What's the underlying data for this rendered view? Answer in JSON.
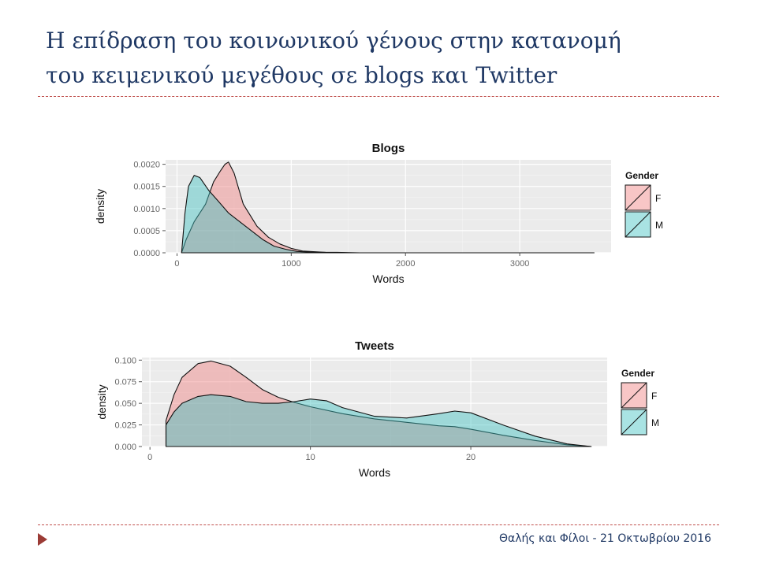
{
  "slide": {
    "title_line1": "Η επίδραση του κοινωνικού γένους στην κατανομή",
    "title_line2": "του κειμενικού μεγέθους σε blogs και Twitter",
    "footer": "Θαλής και Φίλοι - 21 Οκτωβρίου 2016"
  },
  "colors": {
    "F": "#f08080",
    "M": "#40c0c0",
    "panel": "#ebebeb",
    "grid": "#ffffff",
    "title": "#1f3864",
    "rule": "#c0504d"
  },
  "chart_data": [
    {
      "type": "area",
      "title": "Blogs",
      "xlabel": "Words",
      "ylabel": "density",
      "xlim": [
        -100,
        3800
      ],
      "ylim": [
        0,
        0.0021
      ],
      "xticks": [
        0,
        1000,
        2000,
        3000
      ],
      "xtick_labels": [
        "0",
        "1000",
        "2000",
        "3000"
      ],
      "yticks": [
        0,
        0.0005,
        0.001,
        0.0015,
        0.002
      ],
      "ytick_labels": [
        "0.0000",
        "0.0005",
        "0.0010",
        "0.0015",
        "0.0020"
      ],
      "grid": true,
      "legend": {
        "title": "Gender",
        "position": "right",
        "items": [
          "F",
          "M"
        ]
      },
      "series": [
        {
          "name": "F",
          "x": [
            40,
            80,
            150,
            250,
            320,
            380,
            420,
            450,
            500,
            580,
            700,
            800,
            900,
            1000,
            1100,
            1300,
            1500,
            1700,
            2000,
            2500,
            3000,
            3650
          ],
          "y": [
            0.0,
            0.0003,
            0.0007,
            0.0011,
            0.0016,
            0.00185,
            0.002,
            0.00205,
            0.0018,
            0.0011,
            0.0006,
            0.00035,
            0.0002,
            0.0001,
            4e-05,
            1e-05,
            0.0,
            0.0,
            0.0,
            0.0,
            0.0,
            0.0
          ]
        },
        {
          "name": "M",
          "x": [
            40,
            70,
            100,
            150,
            200,
            280,
            350,
            450,
            550,
            650,
            750,
            850,
            950,
            1050,
            1200,
            1400,
            1600,
            2000,
            2500,
            3000,
            3650
          ],
          "y": [
            0.0,
            0.0009,
            0.0015,
            0.00175,
            0.0017,
            0.0014,
            0.0012,
            0.0009,
            0.0007,
            0.0005,
            0.0003,
            0.00015,
            8e-05,
            3e-05,
            1e-05,
            1e-05,
            0.0,
            0.0,
            0.0,
            0.0,
            0.0
          ]
        }
      ]
    },
    {
      "type": "area",
      "title": "Tweets",
      "xlabel": "Words",
      "ylabel": "density",
      "xlim": [
        -0.5,
        28.5
      ],
      "ylim": [
        0,
        0.103
      ],
      "xticks": [
        0,
        10,
        20
      ],
      "xtick_labels": [
        "0",
        "10",
        "20"
      ],
      "yticks": [
        0,
        0.025,
        0.05,
        0.075,
        0.1
      ],
      "ytick_labels": [
        "0.000",
        "0.025",
        "0.050",
        "0.075",
        "0.100"
      ],
      "grid": true,
      "legend": {
        "title": "Gender",
        "position": "right",
        "items": [
          "F",
          "M"
        ]
      },
      "series": [
        {
          "name": "F",
          "x": [
            1,
            1.5,
            2,
            3,
            3.8,
            5,
            6,
            7,
            8,
            9,
            10,
            12,
            14,
            16,
            18,
            19,
            20,
            22,
            24,
            26,
            27.5
          ],
          "y": [
            0.03,
            0.06,
            0.08,
            0.096,
            0.099,
            0.093,
            0.08,
            0.066,
            0.057,
            0.051,
            0.046,
            0.038,
            0.032,
            0.028,
            0.024,
            0.023,
            0.02,
            0.013,
            0.007,
            0.002,
            0.0
          ]
        },
        {
          "name": "M",
          "x": [
            1,
            1.5,
            2,
            3,
            3.8,
            5,
            6,
            7,
            8,
            9,
            10,
            11,
            12,
            14,
            16,
            18,
            19,
            20,
            22,
            24,
            26,
            27.5
          ],
          "y": [
            0.025,
            0.04,
            0.05,
            0.058,
            0.06,
            0.058,
            0.052,
            0.05,
            0.05,
            0.052,
            0.055,
            0.053,
            0.045,
            0.035,
            0.033,
            0.038,
            0.041,
            0.039,
            0.025,
            0.012,
            0.003,
            0.0
          ]
        }
      ]
    }
  ]
}
